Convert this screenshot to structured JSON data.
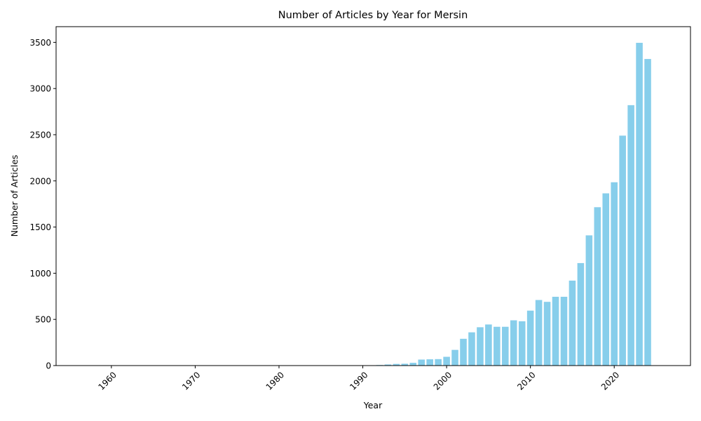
{
  "chart_data": {
    "type": "bar",
    "title": "Number of Articles by Year for Mersin",
    "xlabel": "Year",
    "ylabel": "Number of Articles",
    "xlim": [
      1953.4,
      2029.1
    ],
    "ylim": [
      0,
      3670
    ],
    "xticks": [
      1960,
      1970,
      1980,
      1990,
      2000,
      2010,
      2020
    ],
    "yticks": [
      0,
      500,
      1000,
      1500,
      2000,
      2500,
      3000,
      3500
    ],
    "bar_color": "#87ceeb",
    "x": [
      1957,
      1978,
      1984,
      1986,
      1990,
      1992,
      1993,
      1994,
      1995,
      1996,
      1997,
      1998,
      1999,
      2000,
      2001,
      2002,
      2003,
      2004,
      2005,
      2006,
      2007,
      2008,
      2009,
      2010,
      2011,
      2012,
      2013,
      2014,
      2015,
      2016,
      2017,
      2018,
      2019,
      2020,
      2021,
      2022,
      2023,
      2024
    ],
    "values": [
      2,
      2,
      2,
      2,
      3,
      6,
      12,
      18,
      20,
      30,
      65,
      68,
      70,
      95,
      170,
      290,
      360,
      415,
      445,
      420,
      420,
      490,
      480,
      595,
      710,
      690,
      745,
      745,
      920,
      1110,
      1410,
      1715,
      1865,
      1985,
      2490,
      2820,
      3495,
      3320
    ]
  }
}
